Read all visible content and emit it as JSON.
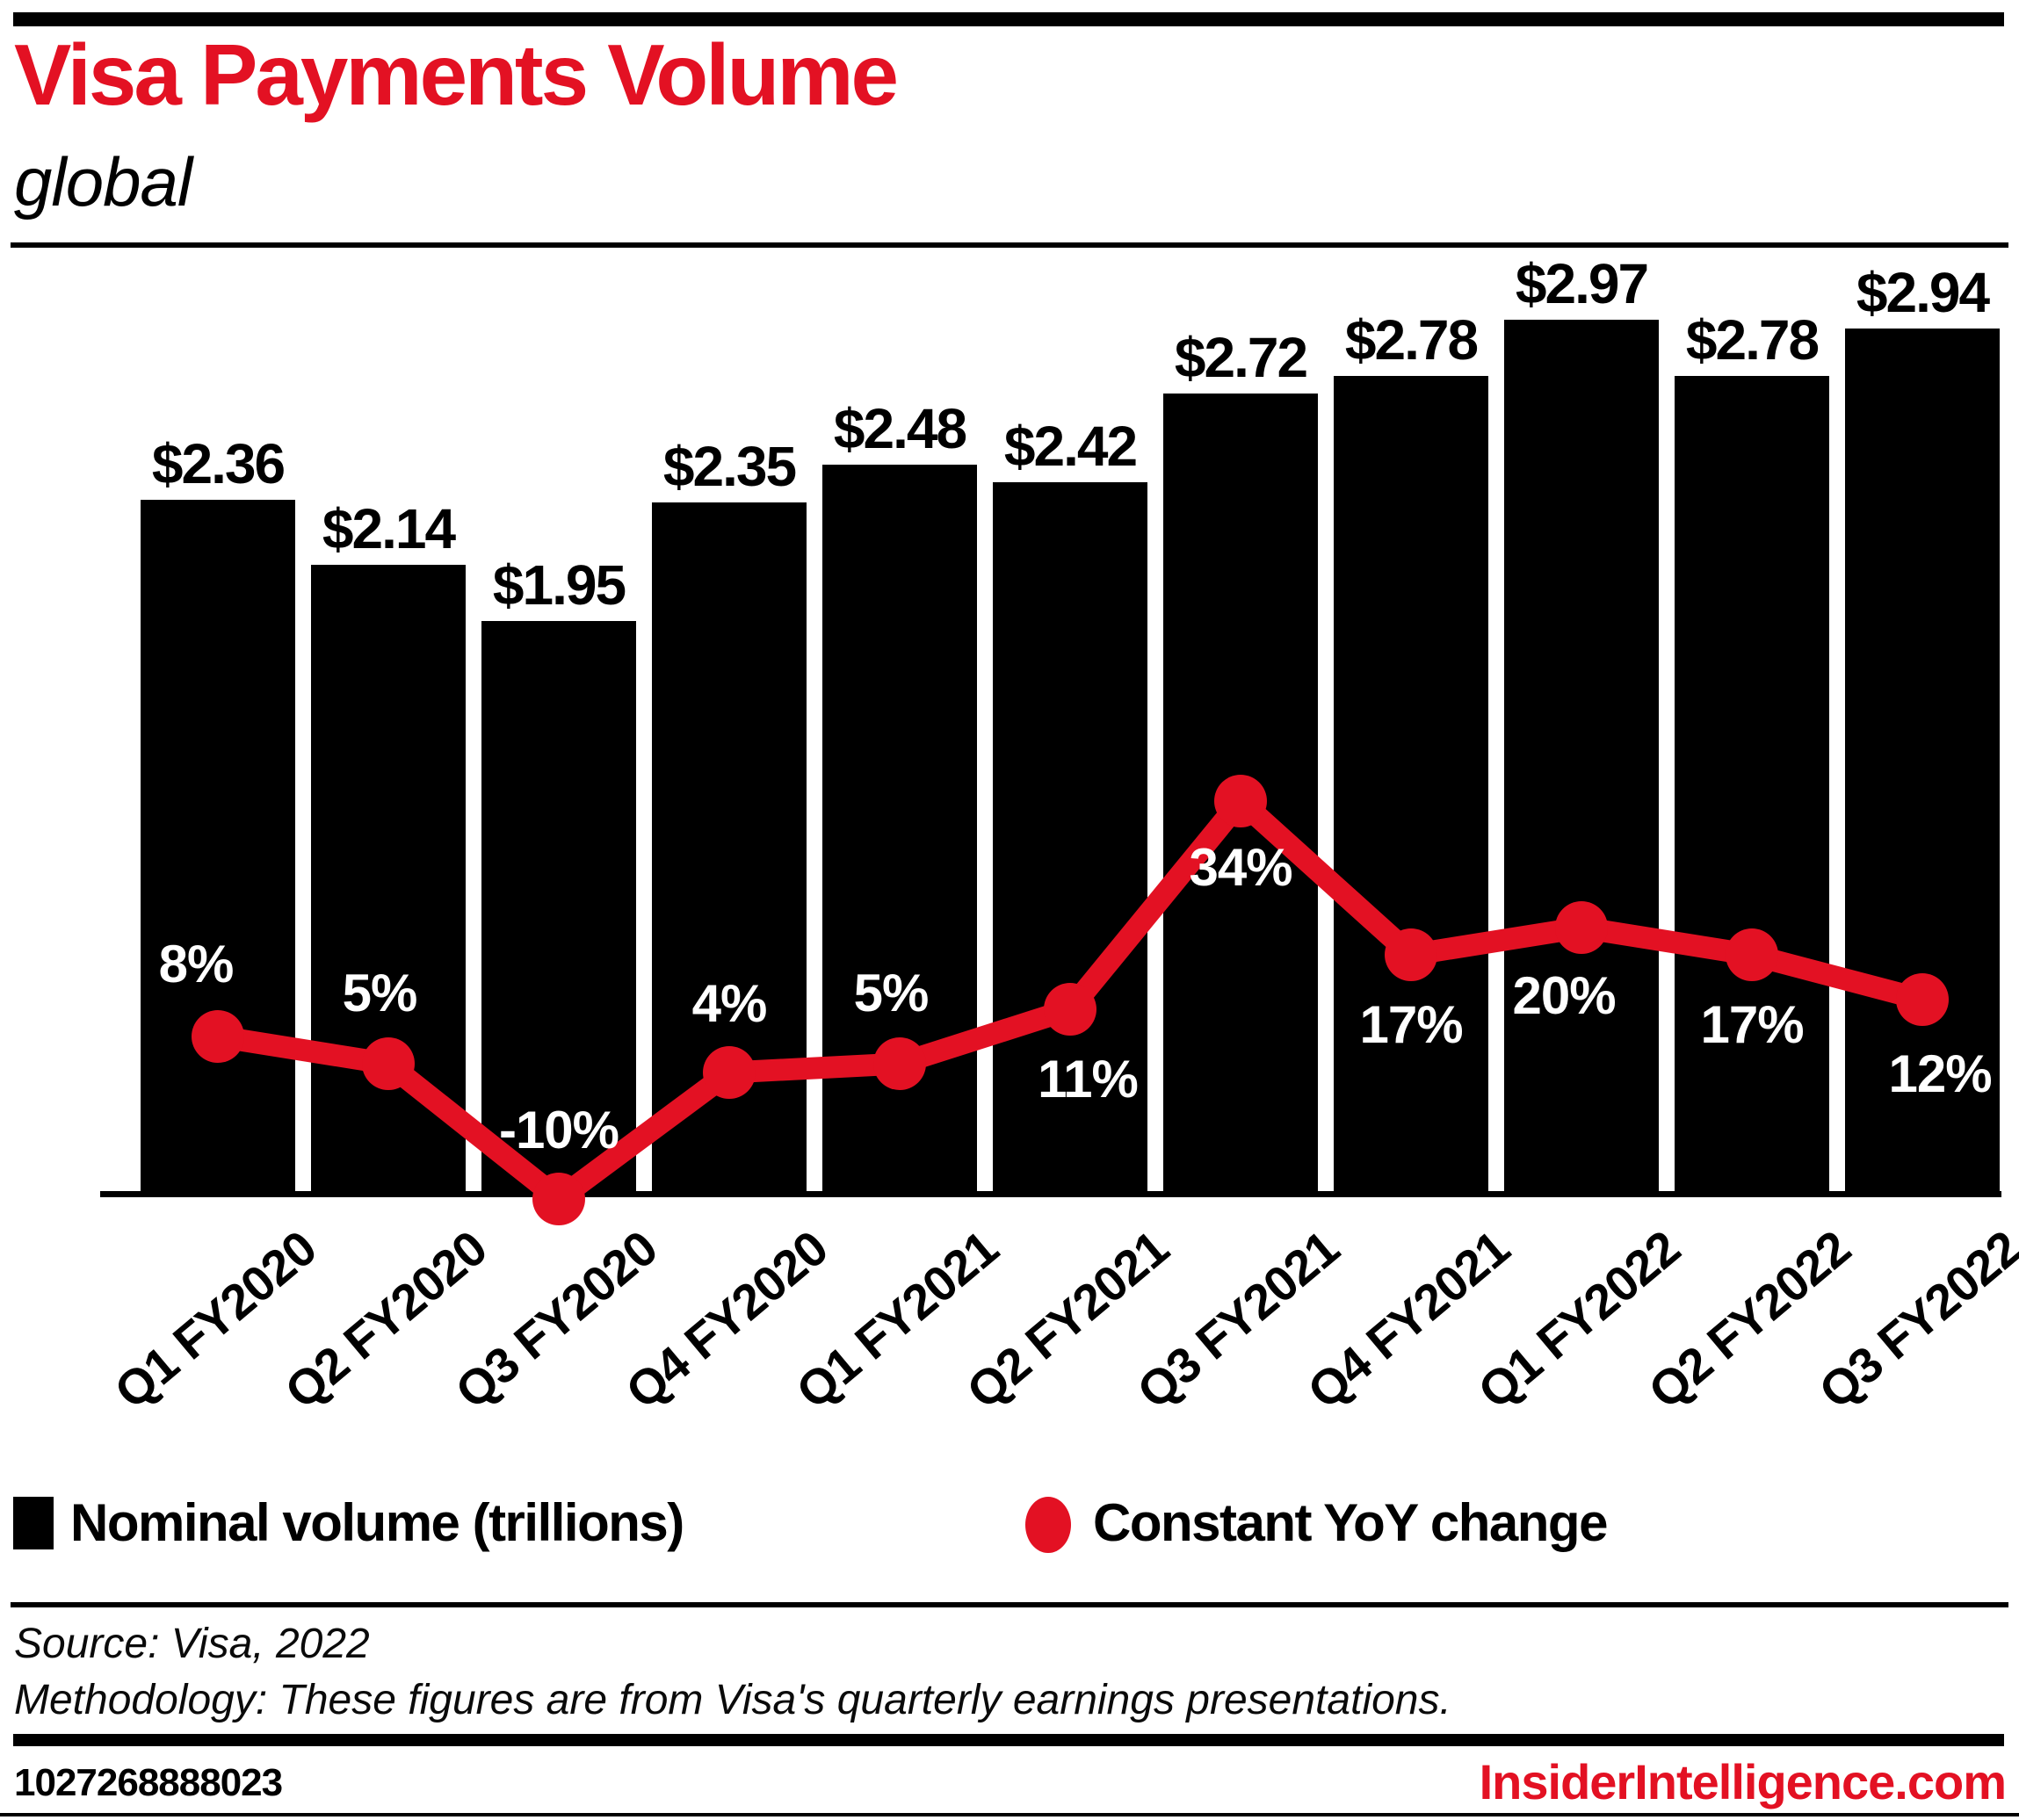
{
  "header": {
    "title": "Visa Payments Volume",
    "subtitle": "global"
  },
  "chart_data": {
    "type": "bar+line",
    "title": "Visa Payments Volume",
    "subtitle": "global",
    "categories": [
      "Q1 FY2020",
      "Q2 FY2020",
      "Q3 FY2020",
      "Q4 FY2020",
      "Q1 FY2021",
      "Q2 FY2021",
      "Q3 FY2021",
      "Q4 FY2021",
      "Q1 FY2022",
      "Q2 FY2022",
      "Q3 FY2022"
    ],
    "series": [
      {
        "name": "Nominal volume (trillions)",
        "type": "bar",
        "unit": "USD trillions",
        "values": [
          2.36,
          2.14,
          1.95,
          2.35,
          2.48,
          2.42,
          2.72,
          2.78,
          2.97,
          2.78,
          2.94
        ],
        "labels": [
          "$2.36",
          "$2.14",
          "$1.95",
          "$2.35",
          "$2.48",
          "$2.42",
          "$2.72",
          "$2.78",
          "$2.97",
          "$2.78",
          "$2.94"
        ]
      },
      {
        "name": "Constant YoY change",
        "type": "line",
        "unit": "percent",
        "values": [
          8,
          5,
          -10,
          4,
          5,
          11,
          34,
          17,
          20,
          17,
          12
        ],
        "labels": [
          "8%",
          "5%",
          "-10%",
          "4%",
          "5%",
          "11%",
          "34%",
          "17%",
          "20%",
          "17%",
          "12%"
        ]
      }
    ],
    "colors": {
      "bar": "#000000",
      "line": "#e31123",
      "title": "#e31123"
    },
    "grid": false,
    "legend_position": "bottom",
    "value_labels_shown": true
  },
  "footer": {
    "source": "Source: Visa, 2022",
    "methodology": "Methodology: These figures are from Visa's quarterly earnings presentations.",
    "chart_id": "1027268888023",
    "site": "InsiderIntelligence.com"
  }
}
